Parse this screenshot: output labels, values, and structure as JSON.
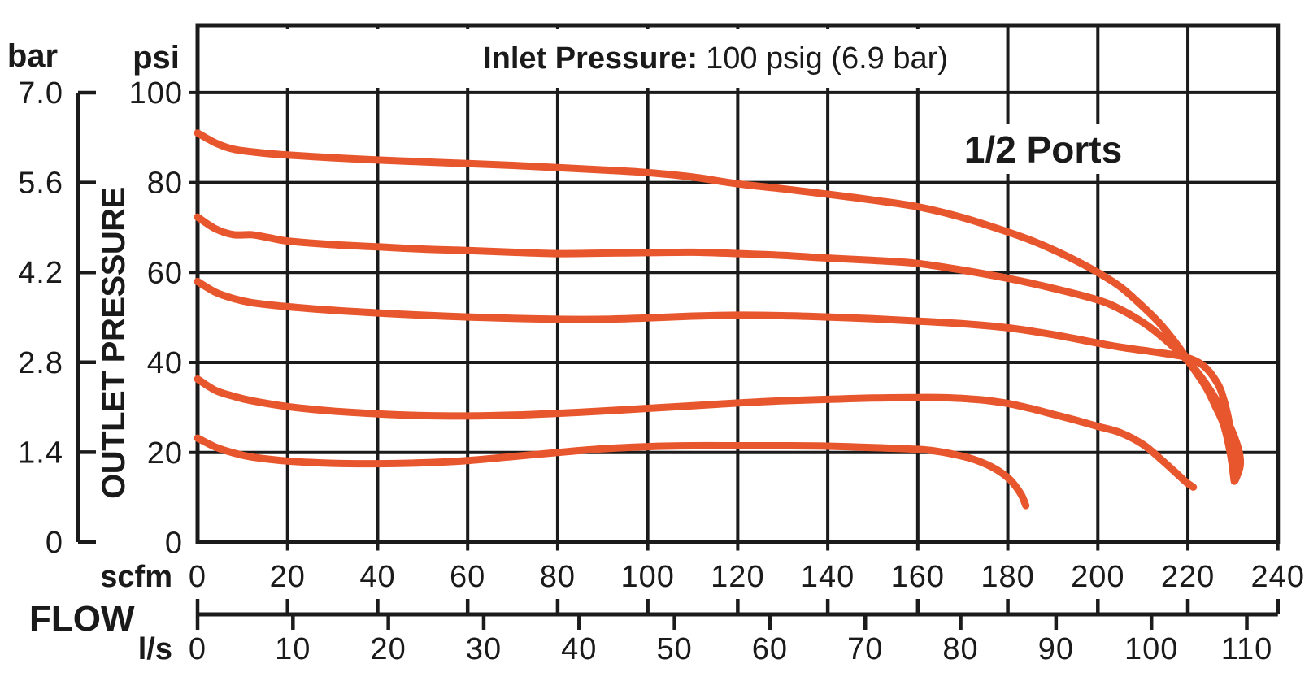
{
  "title": {
    "label_bold": "Inlet Pressure:",
    "label_value": "100 psig (6.9 bar)"
  },
  "annotation": "1/2 Ports",
  "y_axis": {
    "outer_unit": "bar",
    "inner_unit": "psi",
    "title": "OUTLET PRESSURE",
    "bar_ticks": [
      "7.0",
      "5.6",
      "4.2",
      "2.8",
      "1.4",
      "0"
    ],
    "psi_ticks": [
      "100",
      "80",
      "60",
      "40",
      "20",
      "0"
    ]
  },
  "x_axis": {
    "title": "FLOW",
    "primary_unit": "scfm",
    "secondary_unit": "l/s",
    "scfm_ticks": [
      0,
      20,
      40,
      60,
      80,
      100,
      120,
      140,
      160,
      180,
      200,
      220,
      240
    ],
    "ls_ticks": [
      0,
      10,
      20,
      30,
      40,
      50,
      60,
      70,
      80,
      90,
      100,
      110
    ]
  },
  "colors": {
    "curve": "#E8562E",
    "grid": "#1B1B1B",
    "text": "#1A1A1A"
  },
  "chart_data": {
    "type": "line",
    "title": "Inlet Pressure: 100 psig (6.9 bar)",
    "annotation": "1/2 Ports",
    "xlabel": "FLOW",
    "ylabel": "OUTLET PRESSURE",
    "x_unit_primary": "scfm",
    "x_unit_secondary": "l/s",
    "ls_per_scfm": 0.4719,
    "xlim_scfm": [
      0,
      240
    ],
    "ylim_psi": [
      0,
      100
    ],
    "ylim_bar": [
      0,
      7.0
    ],
    "grid": true,
    "x_gridline_step_scfm": 20,
    "y_gridline_step_psi": 20,
    "series": [
      {
        "name": "curve-1-setting-90psi",
        "points_scfm_psi": [
          [
            0,
            91
          ],
          [
            4,
            88.8
          ],
          [
            8,
            87.4
          ],
          [
            14,
            86.6
          ],
          [
            20,
            86.1
          ],
          [
            30,
            85.5
          ],
          [
            40,
            85
          ],
          [
            50,
            84.6
          ],
          [
            60,
            84.2
          ],
          [
            70,
            83.8
          ],
          [
            80,
            83.3
          ],
          [
            90,
            82.8
          ],
          [
            100,
            82.2
          ],
          [
            110,
            81.2
          ],
          [
            120,
            79.7
          ],
          [
            130,
            78.6
          ],
          [
            140,
            77.4
          ],
          [
            150,
            76.1
          ],
          [
            160,
            74.6
          ],
          [
            170,
            72.2
          ],
          [
            180,
            69
          ],
          [
            185,
            67.2
          ],
          [
            190,
            65.1
          ],
          [
            195,
            62.7
          ],
          [
            200,
            60
          ],
          [
            205,
            56.8
          ],
          [
            210,
            52.4
          ],
          [
            214,
            48.4
          ],
          [
            218,
            43.4
          ],
          [
            221,
            39
          ],
          [
            224,
            34.5
          ],
          [
            226,
            30.5
          ],
          [
            228,
            26
          ],
          [
            229.5,
            19.5
          ],
          [
            230.3,
            13.6
          ]
        ]
      },
      {
        "name": "curve-2-setting-72psi",
        "points_scfm_psi": [
          [
            0,
            72.3
          ],
          [
            4,
            69.7
          ],
          [
            8,
            68.4
          ],
          [
            12,
            68.4
          ],
          [
            16,
            67.7
          ],
          [
            20,
            67
          ],
          [
            30,
            66.2
          ],
          [
            40,
            65.7
          ],
          [
            50,
            65.2
          ],
          [
            60,
            64.9
          ],
          [
            70,
            64.5
          ],
          [
            80,
            64.2
          ],
          [
            90,
            64.3
          ],
          [
            100,
            64.4
          ],
          [
            110,
            64.5
          ],
          [
            120,
            64.2
          ],
          [
            130,
            63.8
          ],
          [
            140,
            63.2
          ],
          [
            150,
            62.7
          ],
          [
            160,
            62
          ],
          [
            170,
            60.5
          ],
          [
            180,
            58.7
          ],
          [
            190,
            56.5
          ],
          [
            200,
            53.9
          ],
          [
            205,
            51.8
          ],
          [
            210,
            48.9
          ],
          [
            214,
            45.9
          ],
          [
            218,
            42.3
          ],
          [
            221,
            39.2
          ],
          [
            224,
            35.3
          ],
          [
            227,
            30.5
          ],
          [
            229.5,
            25.5
          ],
          [
            231.3,
            20.5
          ],
          [
            231.6,
            17
          ],
          [
            230.5,
            13.8
          ]
        ]
      },
      {
        "name": "curve-3-setting-58psi",
        "points_scfm_psi": [
          [
            0,
            58
          ],
          [
            4,
            55.6
          ],
          [
            8,
            54.2
          ],
          [
            12,
            53.3
          ],
          [
            20,
            52.4
          ],
          [
            30,
            51.6
          ],
          [
            40,
            51
          ],
          [
            50,
            50.5
          ],
          [
            60,
            50.1
          ],
          [
            70,
            49.8
          ],
          [
            80,
            49.6
          ],
          [
            90,
            49.6
          ],
          [
            100,
            49.9
          ],
          [
            110,
            50.3
          ],
          [
            120,
            50.5
          ],
          [
            130,
            50.4
          ],
          [
            140,
            50.1
          ],
          [
            150,
            49.7
          ],
          [
            160,
            49.2
          ],
          [
            170,
            48.6
          ],
          [
            180,
            47.7
          ],
          [
            190,
            46.2
          ],
          [
            200,
            44.3
          ],
          [
            205,
            43.4
          ],
          [
            210,
            42.7
          ],
          [
            215,
            42
          ],
          [
            219,
            41.3
          ],
          [
            222,
            40.2
          ],
          [
            224,
            38.8
          ],
          [
            226,
            36.3
          ],
          [
            227.5,
            33.3
          ],
          [
            229,
            27.5
          ],
          [
            230,
            20.5
          ],
          [
            230.4,
            14.2
          ]
        ]
      },
      {
        "name": "curve-4-setting-36psi",
        "points_scfm_psi": [
          [
            0,
            36.3
          ],
          [
            4,
            33.8
          ],
          [
            8,
            32.5
          ],
          [
            12,
            31.5
          ],
          [
            20,
            30.2
          ],
          [
            30,
            29.2
          ],
          [
            40,
            28.6
          ],
          [
            50,
            28.2
          ],
          [
            60,
            28.1
          ],
          [
            70,
            28.3
          ],
          [
            80,
            28.7
          ],
          [
            90,
            29.2
          ],
          [
            100,
            29.8
          ],
          [
            110,
            30.4
          ],
          [
            120,
            31
          ],
          [
            130,
            31.5
          ],
          [
            140,
            31.8
          ],
          [
            150,
            32.1
          ],
          [
            160,
            32.2
          ],
          [
            165,
            32.2
          ],
          [
            170,
            32
          ],
          [
            175,
            31.6
          ],
          [
            180,
            30.9
          ],
          [
            185,
            29.8
          ],
          [
            190,
            28.5
          ],
          [
            195,
            27.2
          ],
          [
            200,
            25.8
          ],
          [
            205,
            24.4
          ],
          [
            210,
            21.8
          ],
          [
            214,
            18.5
          ],
          [
            217,
            15.8
          ],
          [
            219.5,
            13.5
          ],
          [
            221.2,
            12.3
          ]
        ]
      },
      {
        "name": "curve-5-setting-23psi",
        "points_scfm_psi": [
          [
            0,
            23.2
          ],
          [
            4,
            21.2
          ],
          [
            8,
            19.9
          ],
          [
            12,
            19
          ],
          [
            20,
            18.1
          ],
          [
            30,
            17.6
          ],
          [
            40,
            17.5
          ],
          [
            50,
            17.7
          ],
          [
            60,
            18.2
          ],
          [
            70,
            19.1
          ],
          [
            80,
            20
          ],
          [
            90,
            20.8
          ],
          [
            100,
            21.3
          ],
          [
            110,
            21.5
          ],
          [
            120,
            21.5
          ],
          [
            130,
            21.5
          ],
          [
            140,
            21.4
          ],
          [
            150,
            21.1
          ],
          [
            160,
            20.7
          ],
          [
            164,
            20.3
          ],
          [
            168,
            19.6
          ],
          [
            172,
            18.6
          ],
          [
            176,
            17
          ],
          [
            179,
            15.2
          ],
          [
            181,
            13.4
          ],
          [
            183,
            10.6
          ],
          [
            184,
            8.2
          ]
        ]
      }
    ]
  }
}
